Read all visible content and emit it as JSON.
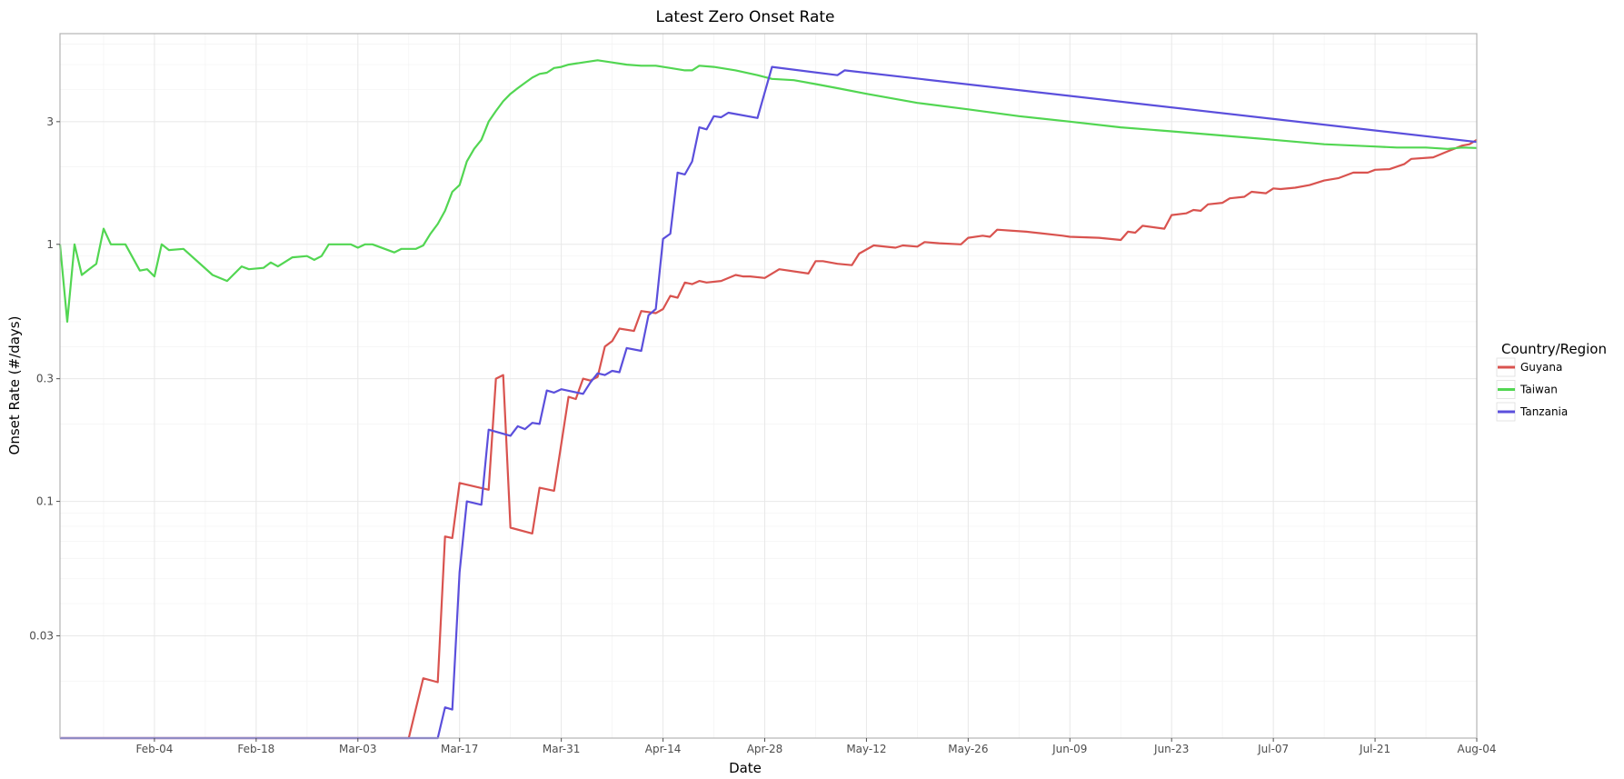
{
  "chart_data": {
    "type": "line",
    "title": "Latest Zero Onset Rate",
    "xlabel": "Date",
    "ylabel": "Onset Rate (#/days)",
    "y_scale": "log10",
    "ylim": [
      0.012,
      6.6
    ],
    "xlim": [
      "2020-01-22",
      "2020-08-04"
    ],
    "x_ticks": [
      "Feb-04",
      "Feb-18",
      "Mar-03",
      "Mar-17",
      "Mar-31",
      "Apr-14",
      "Apr-28",
      "May-12",
      "May-26",
      "Jun-09",
      "Jun-23",
      "Jul-07",
      "Jul-21",
      "Aug-04"
    ],
    "x_tick_dates": [
      "2020-02-04",
      "2020-02-18",
      "2020-03-03",
      "2020-03-17",
      "2020-03-31",
      "2020-04-14",
      "2020-04-28",
      "2020-05-12",
      "2020-05-26",
      "2020-06-09",
      "2020-06-23",
      "2020-07-07",
      "2020-07-21",
      "2020-08-04"
    ],
    "y_ticks": [
      0.03,
      0.1,
      0.3,
      1,
      3
    ],
    "y_tick_labels": [
      "0.03",
      "0.1",
      "0.3",
      "1",
      "3"
    ],
    "grid": true,
    "legend": {
      "title": "Country/Region",
      "position": "right"
    },
    "series": [
      {
        "name": "Guyana",
        "color": "#d9534f",
        "points": [
          [
            "2020-01-22",
            0.012
          ],
          [
            "2020-03-10",
            0.012
          ],
          [
            "2020-03-12",
            0.0205
          ],
          [
            "2020-03-14",
            0.0198
          ],
          [
            "2020-03-15",
            0.073
          ],
          [
            "2020-03-16",
            0.072
          ],
          [
            "2020-03-17",
            0.118
          ],
          [
            "2020-03-21",
            0.111
          ],
          [
            "2020-03-22",
            0.3
          ],
          [
            "2020-03-23",
            0.31
          ],
          [
            "2020-03-24",
            0.079
          ],
          [
            "2020-03-27",
            0.075
          ],
          [
            "2020-03-28",
            0.113
          ],
          [
            "2020-03-30",
            0.11
          ],
          [
            "2020-04-01",
            0.255
          ],
          [
            "2020-04-02",
            0.25
          ],
          [
            "2020-04-03",
            0.3
          ],
          [
            "2020-04-04",
            0.295
          ],
          [
            "2020-04-05",
            0.305
          ],
          [
            "2020-04-06",
            0.4
          ],
          [
            "2020-04-07",
            0.42
          ],
          [
            "2020-04-08",
            0.47
          ],
          [
            "2020-04-10",
            0.46
          ],
          [
            "2020-04-11",
            0.55
          ],
          [
            "2020-04-13",
            0.54
          ],
          [
            "2020-04-14",
            0.56
          ],
          [
            "2020-04-15",
            0.63
          ],
          [
            "2020-04-16",
            0.62
          ],
          [
            "2020-04-17",
            0.71
          ],
          [
            "2020-04-18",
            0.7
          ],
          [
            "2020-04-19",
            0.72
          ],
          [
            "2020-04-20",
            0.71
          ],
          [
            "2020-04-22",
            0.72
          ],
          [
            "2020-04-24",
            0.76
          ],
          [
            "2020-04-25",
            0.75
          ],
          [
            "2020-04-26",
            0.75
          ],
          [
            "2020-04-28",
            0.74
          ],
          [
            "2020-04-30",
            0.8
          ],
          [
            "2020-05-04",
            0.77
          ],
          [
            "2020-05-05",
            0.86
          ],
          [
            "2020-05-06",
            0.86
          ],
          [
            "2020-05-08",
            0.84
          ],
          [
            "2020-05-10",
            0.83
          ],
          [
            "2020-05-11",
            0.92
          ],
          [
            "2020-05-13",
            0.99
          ],
          [
            "2020-05-16",
            0.97
          ],
          [
            "2020-05-17",
            0.99
          ],
          [
            "2020-05-19",
            0.98
          ],
          [
            "2020-05-20",
            1.02
          ],
          [
            "2020-05-22",
            1.01
          ],
          [
            "2020-05-25",
            1.0
          ],
          [
            "2020-05-26",
            1.06
          ],
          [
            "2020-05-28",
            1.08
          ],
          [
            "2020-05-29",
            1.07
          ],
          [
            "2020-05-30",
            1.14
          ],
          [
            "2020-06-03",
            1.12
          ],
          [
            "2020-06-08",
            1.08
          ],
          [
            "2020-06-09",
            1.07
          ],
          [
            "2020-06-13",
            1.06
          ],
          [
            "2020-06-16",
            1.04
          ],
          [
            "2020-06-17",
            1.12
          ],
          [
            "2020-06-18",
            1.11
          ],
          [
            "2020-06-19",
            1.18
          ],
          [
            "2020-06-22",
            1.15
          ],
          [
            "2020-06-23",
            1.3
          ],
          [
            "2020-06-25",
            1.32
          ],
          [
            "2020-06-26",
            1.36
          ],
          [
            "2020-06-27",
            1.35
          ],
          [
            "2020-06-28",
            1.43
          ],
          [
            "2020-06-30",
            1.45
          ],
          [
            "2020-07-01",
            1.51
          ],
          [
            "2020-07-03",
            1.53
          ],
          [
            "2020-07-04",
            1.6
          ],
          [
            "2020-07-06",
            1.58
          ],
          [
            "2020-07-07",
            1.65
          ],
          [
            "2020-07-08",
            1.64
          ],
          [
            "2020-07-10",
            1.66
          ],
          [
            "2020-07-12",
            1.7
          ],
          [
            "2020-07-14",
            1.77
          ],
          [
            "2020-07-16",
            1.81
          ],
          [
            "2020-07-18",
            1.9
          ],
          [
            "2020-07-20",
            1.9
          ],
          [
            "2020-07-21",
            1.95
          ],
          [
            "2020-07-23",
            1.96
          ],
          [
            "2020-07-25",
            2.05
          ],
          [
            "2020-07-26",
            2.15
          ],
          [
            "2020-07-29",
            2.18
          ],
          [
            "2020-07-31",
            2.3
          ],
          [
            "2020-08-02",
            2.42
          ],
          [
            "2020-08-03",
            2.45
          ],
          [
            "2020-08-04",
            2.55
          ]
        ]
      },
      {
        "name": "Taiwan",
        "color": "#52d652",
        "points": [
          [
            "2020-01-22",
            1.0
          ],
          [
            "2020-01-23",
            0.5
          ],
          [
            "2020-01-24",
            1.0
          ],
          [
            "2020-01-25",
            0.76
          ],
          [
            "2020-01-26",
            0.8
          ],
          [
            "2020-01-27",
            0.84
          ],
          [
            "2020-01-28",
            1.15
          ],
          [
            "2020-01-29",
            1.0
          ],
          [
            "2020-01-31",
            1.0
          ],
          [
            "2020-02-02",
            0.79
          ],
          [
            "2020-02-03",
            0.8
          ],
          [
            "2020-02-04",
            0.75
          ],
          [
            "2020-02-05",
            1.0
          ],
          [
            "2020-02-06",
            0.95
          ],
          [
            "2020-02-08",
            0.96
          ],
          [
            "2020-02-12",
            0.76
          ],
          [
            "2020-02-14",
            0.72
          ],
          [
            "2020-02-16",
            0.82
          ],
          [
            "2020-02-17",
            0.8
          ],
          [
            "2020-02-19",
            0.81
          ],
          [
            "2020-02-20",
            0.85
          ],
          [
            "2020-02-21",
            0.82
          ],
          [
            "2020-02-23",
            0.89
          ],
          [
            "2020-02-25",
            0.9
          ],
          [
            "2020-02-26",
            0.87
          ],
          [
            "2020-02-27",
            0.9
          ],
          [
            "2020-02-28",
            1.0
          ],
          [
            "2020-03-02",
            1.0
          ],
          [
            "2020-03-03",
            0.97
          ],
          [
            "2020-03-04",
            1.0
          ],
          [
            "2020-03-05",
            1.0
          ],
          [
            "2020-03-08",
            0.93
          ],
          [
            "2020-03-09",
            0.96
          ],
          [
            "2020-03-11",
            0.96
          ],
          [
            "2020-03-12",
            0.99
          ],
          [
            "2020-03-13",
            1.1
          ],
          [
            "2020-03-14",
            1.2
          ],
          [
            "2020-03-15",
            1.35
          ],
          [
            "2020-03-16",
            1.6
          ],
          [
            "2020-03-17",
            1.7
          ],
          [
            "2020-03-18",
            2.1
          ],
          [
            "2020-03-19",
            2.35
          ],
          [
            "2020-03-20",
            2.55
          ],
          [
            "2020-03-21",
            3.0
          ],
          [
            "2020-03-22",
            3.3
          ],
          [
            "2020-03-23",
            3.6
          ],
          [
            "2020-03-24",
            3.85
          ],
          [
            "2020-03-25",
            4.05
          ],
          [
            "2020-03-26",
            4.25
          ],
          [
            "2020-03-27",
            4.45
          ],
          [
            "2020-03-28",
            4.6
          ],
          [
            "2020-03-29",
            4.65
          ],
          [
            "2020-03-30",
            4.85
          ],
          [
            "2020-03-31",
            4.9
          ],
          [
            "2020-04-01",
            5.0
          ],
          [
            "2020-04-02",
            5.05
          ],
          [
            "2020-04-03",
            5.1
          ],
          [
            "2020-04-05",
            5.2
          ],
          [
            "2020-04-07",
            5.1
          ],
          [
            "2020-04-09",
            5.0
          ],
          [
            "2020-04-11",
            4.95
          ],
          [
            "2020-04-13",
            4.95
          ],
          [
            "2020-04-15",
            4.85
          ],
          [
            "2020-04-17",
            4.75
          ],
          [
            "2020-04-18",
            4.75
          ],
          [
            "2020-04-19",
            4.95
          ],
          [
            "2020-04-21",
            4.9
          ],
          [
            "2020-04-24",
            4.75
          ],
          [
            "2020-04-27",
            4.55
          ],
          [
            "2020-04-29",
            4.4
          ],
          [
            "2020-05-02",
            4.35
          ],
          [
            "2020-05-05",
            4.2
          ],
          [
            "2020-05-08",
            4.05
          ],
          [
            "2020-05-12",
            3.85
          ],
          [
            "2020-05-19",
            3.55
          ],
          [
            "2020-05-26",
            3.35
          ],
          [
            "2020-06-02",
            3.15
          ],
          [
            "2020-06-09",
            3.0
          ],
          [
            "2020-06-16",
            2.85
          ],
          [
            "2020-06-23",
            2.75
          ],
          [
            "2020-06-30",
            2.65
          ],
          [
            "2020-07-07",
            2.55
          ],
          [
            "2020-07-14",
            2.45
          ],
          [
            "2020-07-21",
            2.4
          ],
          [
            "2020-07-24",
            2.38
          ],
          [
            "2020-07-28",
            2.38
          ],
          [
            "2020-07-31",
            2.35
          ],
          [
            "2020-08-02",
            2.38
          ],
          [
            "2020-08-04",
            2.37
          ]
        ]
      },
      {
        "name": "Tanzania",
        "color": "#5b4fdc",
        "points": [
          [
            "2020-01-22",
            0.012
          ],
          [
            "2020-03-14",
            0.012
          ],
          [
            "2020-03-15",
            0.0158
          ],
          [
            "2020-03-16",
            0.0155
          ],
          [
            "2020-03-17",
            0.053
          ],
          [
            "2020-03-18",
            0.1
          ],
          [
            "2020-03-20",
            0.097
          ],
          [
            "2020-03-21",
            0.19
          ],
          [
            "2020-03-24",
            0.18
          ],
          [
            "2020-03-25",
            0.196
          ],
          [
            "2020-03-26",
            0.191
          ],
          [
            "2020-03-27",
            0.202
          ],
          [
            "2020-03-28",
            0.2
          ],
          [
            "2020-03-29",
            0.27
          ],
          [
            "2020-03-30",
            0.265
          ],
          [
            "2020-03-31",
            0.273
          ],
          [
            "2020-04-03",
            0.262
          ],
          [
            "2020-04-04",
            0.29
          ],
          [
            "2020-04-05",
            0.315
          ],
          [
            "2020-04-06",
            0.31
          ],
          [
            "2020-04-07",
            0.322
          ],
          [
            "2020-04-08",
            0.318
          ],
          [
            "2020-04-09",
            0.395
          ],
          [
            "2020-04-11",
            0.385
          ],
          [
            "2020-04-12",
            0.53
          ],
          [
            "2020-04-13",
            0.56
          ],
          [
            "2020-04-14",
            1.05
          ],
          [
            "2020-04-15",
            1.1
          ],
          [
            "2020-04-16",
            1.9
          ],
          [
            "2020-04-17",
            1.87
          ],
          [
            "2020-04-18",
            2.1
          ],
          [
            "2020-04-19",
            2.85
          ],
          [
            "2020-04-20",
            2.8
          ],
          [
            "2020-04-21",
            3.15
          ],
          [
            "2020-04-22",
            3.12
          ],
          [
            "2020-04-23",
            3.25
          ],
          [
            "2020-04-27",
            3.1
          ],
          [
            "2020-04-29",
            4.9
          ],
          [
            "2020-05-08",
            4.55
          ],
          [
            "2020-05-09",
            4.75
          ],
          [
            "2020-08-04",
            2.5
          ]
        ]
      }
    ]
  }
}
